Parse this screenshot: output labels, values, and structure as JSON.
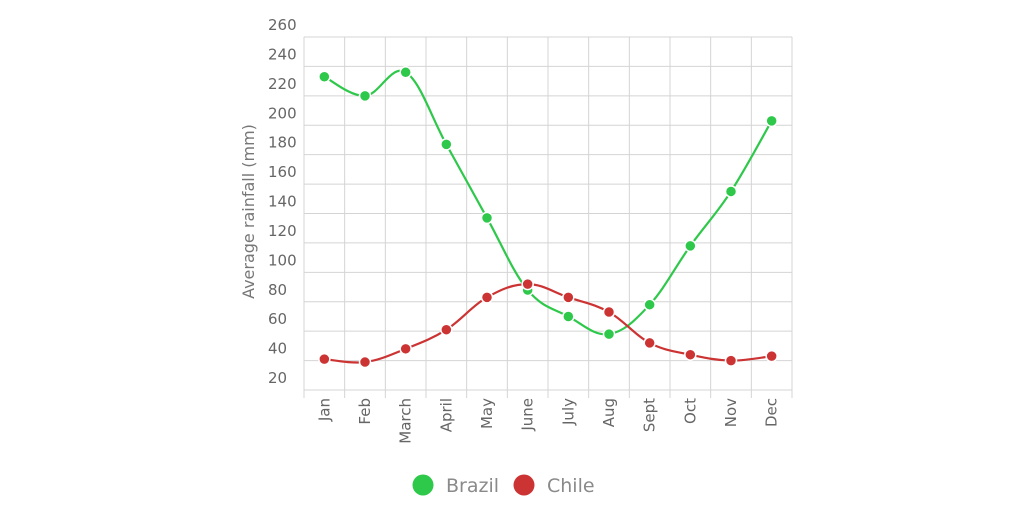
{
  "chart_data": {
    "type": "line",
    "title": "",
    "xlabel": "",
    "ylabel": "Average rainfall (mm)",
    "categories": [
      "Jan",
      "Feb",
      "March",
      "April",
      "May",
      "June",
      "July",
      "Aug",
      "Sept",
      "Oct",
      "Nov",
      "Dec"
    ],
    "y_ticks": [
      20,
      40,
      60,
      80,
      100,
      120,
      140,
      160,
      180,
      200,
      220,
      240,
      260
    ],
    "ylim": [
      20,
      260
    ],
    "grid": true,
    "legend_position": "bottom",
    "series": [
      {
        "name": "Brazil",
        "color": "#2ec84a",
        "values": [
          233,
          220,
          236,
          187,
          137,
          88,
          70,
          58,
          78,
          118,
          155,
          203
        ]
      },
      {
        "name": "Chile",
        "color": "#cc3333",
        "values": [
          41,
          39,
          48,
          61,
          83,
          92,
          83,
          73,
          52,
          44,
          40,
          43
        ]
      }
    ]
  }
}
